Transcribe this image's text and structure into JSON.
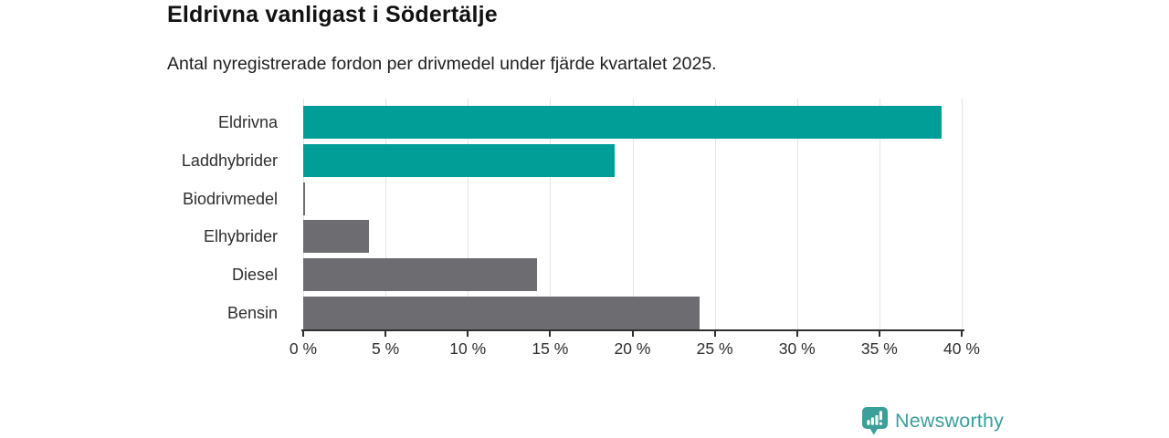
{
  "chart_data": {
    "type": "bar",
    "orientation": "horizontal",
    "title": "Eldrivna vanligast i Södertälje",
    "subtitle": "Antal nyregistrerade fordon per drivmedel under fjärde kvartalet 2025.",
    "categories": [
      "Eldrivna",
      "Laddhybrider",
      "Biodrivmedel",
      "Elhybrider",
      "Diesel",
      "Bensin"
    ],
    "values": [
      38.8,
      18.9,
      0.1,
      4.0,
      14.2,
      24.1
    ],
    "unit": "%",
    "bar_colors": [
      "#009E96",
      "#009E96",
      "#6C6C71",
      "#6C6C71",
      "#6C6C71",
      "#6C6C71"
    ],
    "highlight_color": "#009E96",
    "default_color": "#6C6C71",
    "xlim": [
      0,
      40
    ],
    "x_ticks": [
      0,
      5,
      10,
      15,
      20,
      25,
      30,
      35,
      40
    ],
    "x_tick_suffix": " %",
    "xlabel": "",
    "ylabel": "",
    "grid": "vertical",
    "legend": "none",
    "gridline_color": "#E3E3E3",
    "axis_color": "#2F2F2F"
  },
  "branding": {
    "logo_text": "Newsworthy",
    "logo_icon": "bar-chart-pin-icon",
    "logo_color": "#3B9E9B"
  }
}
